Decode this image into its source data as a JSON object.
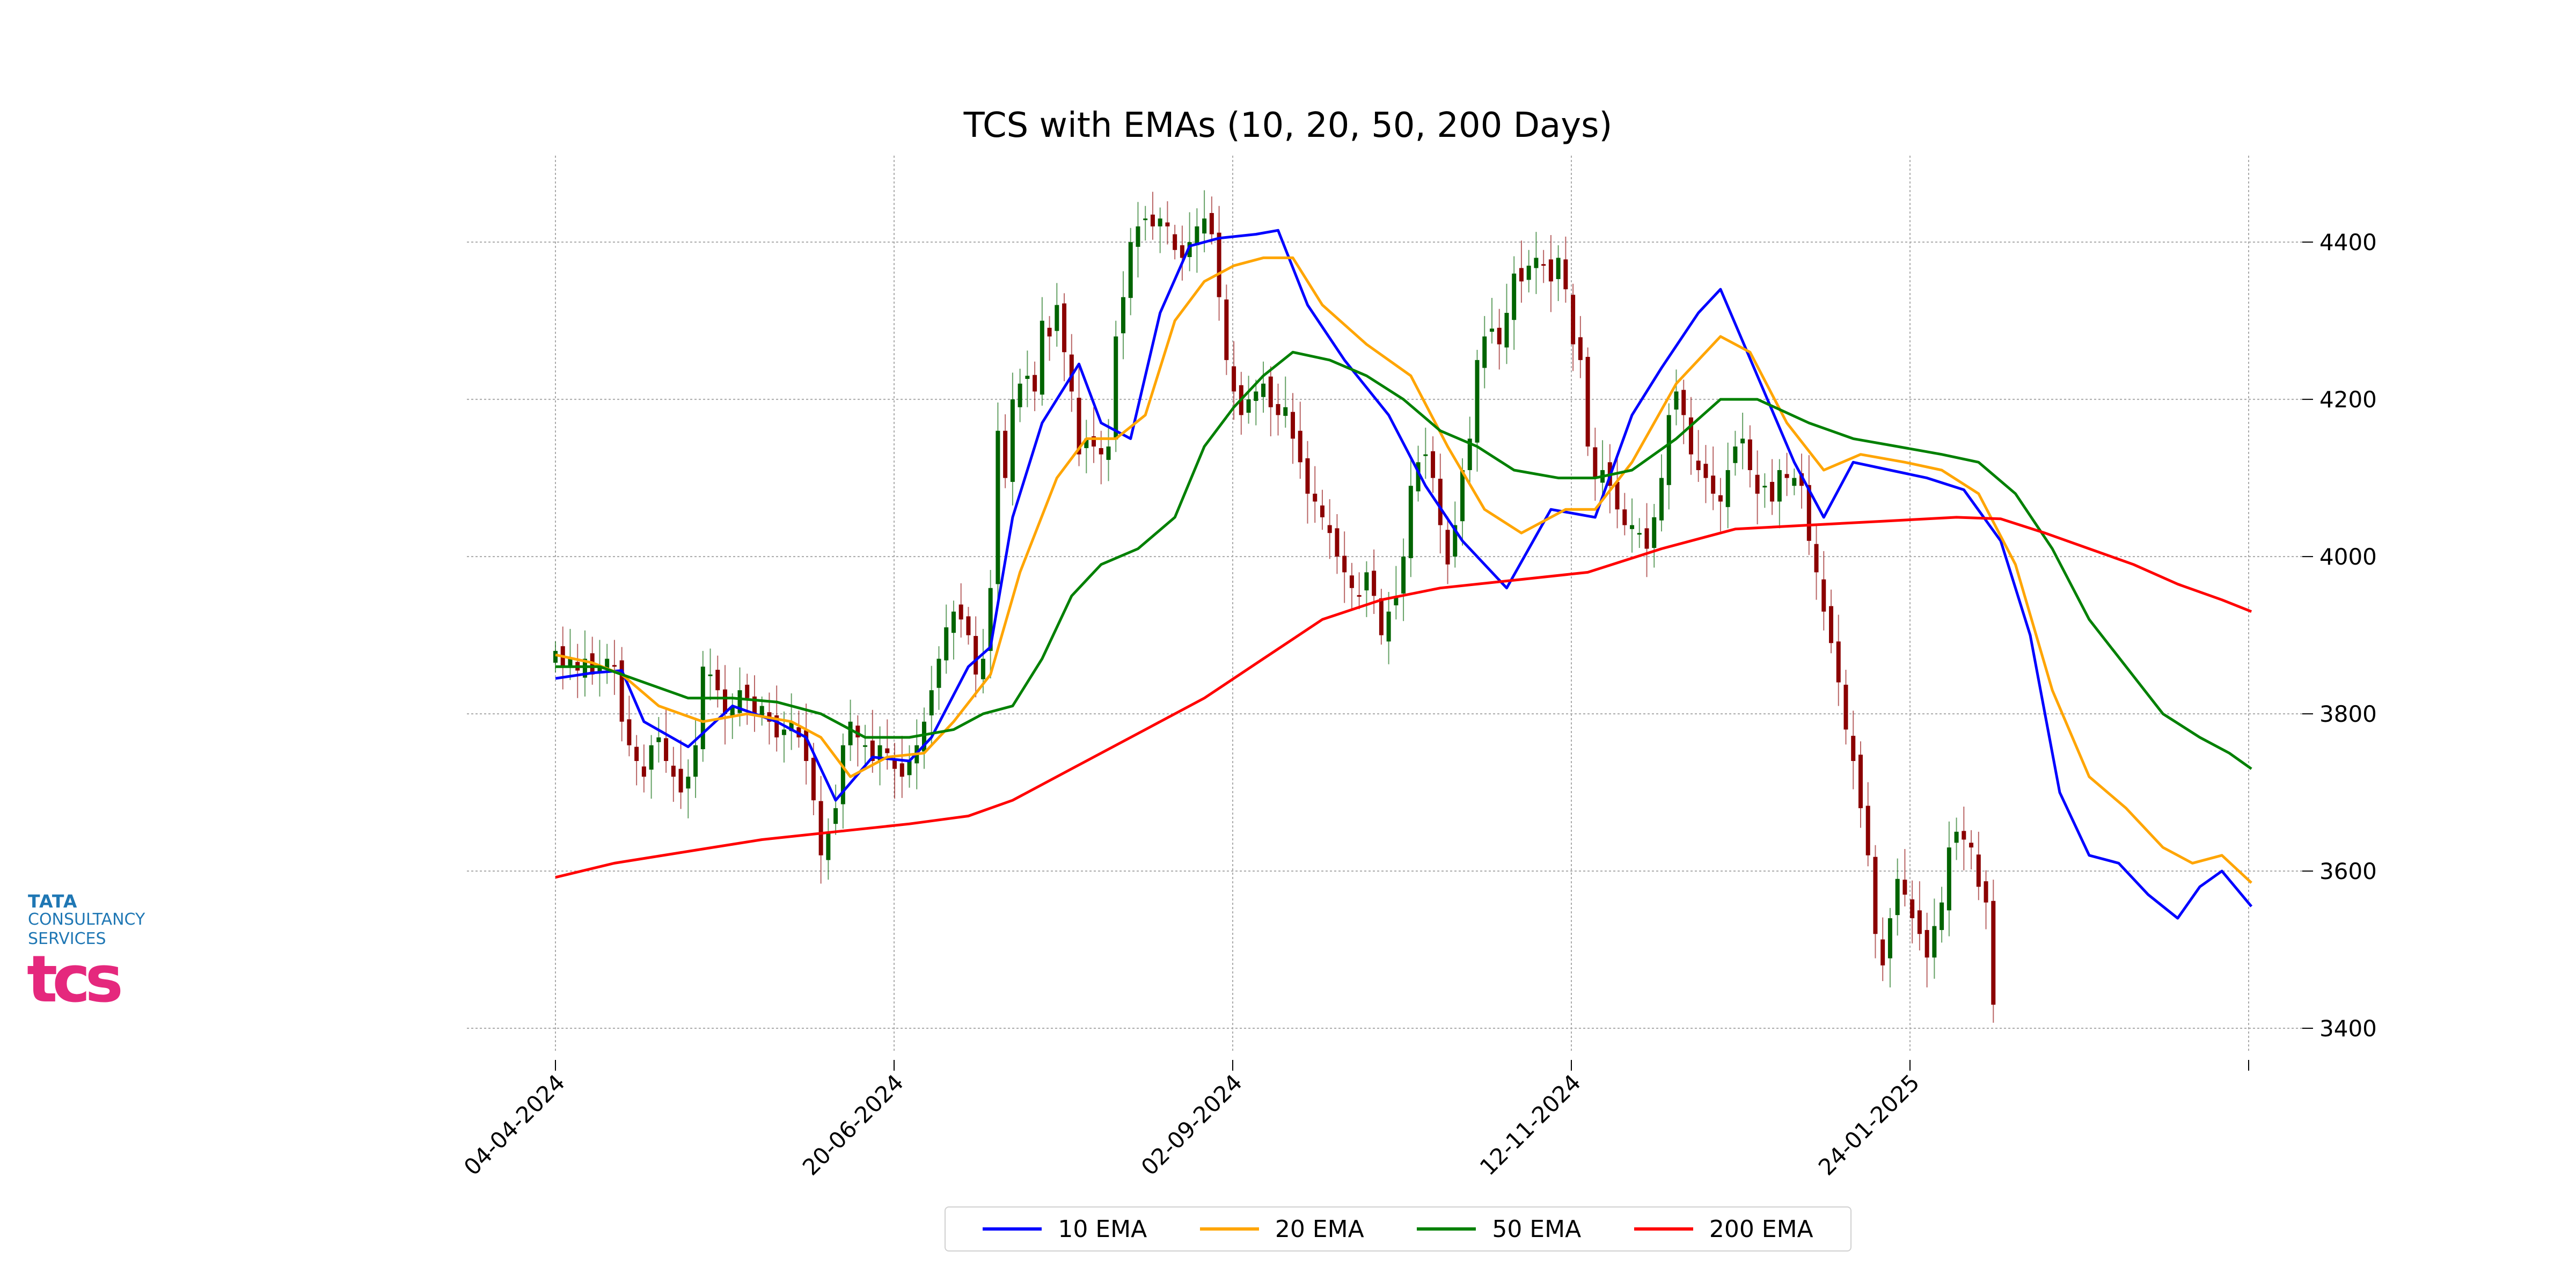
{
  "logo": {
    "line1": "TATA",
    "line2": "CONSULTANCY",
    "line3": "SERVICES",
    "mark": "tcs"
  },
  "chart_data": {
    "type": "candlestick",
    "title": "TCS with EMAs (10, 20, 50, 200 Days)",
    "xlabel": "",
    "ylabel": "",
    "ylim": [
      3370,
      4510
    ],
    "y_ticks": [
      3400,
      3600,
      3800,
      4000,
      4200,
      4400
    ],
    "x_tick_labels": [
      "04-04-2024",
      "20-06-2024",
      "02-09-2024",
      "12-11-2024",
      "24-01-2025",
      ""
    ],
    "grid": true,
    "y_axis_side": "right",
    "legend_position": "bottom-center",
    "colors": {
      "up": "#006400",
      "down": "#8b0000"
    },
    "candles_approx_close": [
      3880,
      3860,
      3870,
      3855,
      3870,
      3850,
      3860,
      3870,
      3860,
      3790,
      3760,
      3740,
      3720,
      3760,
      3770,
      3740,
      3720,
      3700,
      3720,
      3760,
      3860,
      3850,
      3830,
      3800,
      3810,
      3830,
      3820,
      3800,
      3810,
      3790,
      3770,
      3780,
      3790,
      3770,
      3740,
      3690,
      3620,
      3650,
      3680,
      3760,
      3790,
      3770,
      3760,
      3740,
      3760,
      3750,
      3730,
      3720,
      3740,
      3760,
      3790,
      3830,
      3870,
      3910,
      3930,
      3920,
      3900,
      3850,
      3870,
      3960,
      4160,
      4100,
      4200,
      4220,
      4230,
      4210,
      4300,
      4280,
      4320,
      4260,
      4210,
      4130,
      4150,
      4140,
      4130,
      4140,
      4280,
      4330,
      4400,
      4420,
      4430,
      4420,
      4430,
      4420,
      4390,
      4380,
      4400,
      4420,
      4430,
      4410,
      4330,
      4250,
      4210,
      4180,
      4200,
      4210,
      4220,
      4190,
      4180,
      4190,
      4150,
      4120,
      4080,
      4070,
      4050,
      4030,
      4000,
      3980,
      3960,
      3950,
      3980,
      3950,
      3900,
      3930,
      3950,
      4000,
      4090,
      4120,
      4130,
      4100,
      4040,
      3990,
      4040,
      4110,
      4150,
      4250,
      4280,
      4290,
      4270,
      4310,
      4360,
      4350,
      4370,
      4380,
      4370,
      4350,
      4380,
      4340,
      4270,
      4250,
      4140,
      4100,
      4110,
      4090,
      4060,
      4040,
      4040,
      4030,
      4010,
      4050,
      4100,
      4180,
      4210,
      4180,
      4130,
      4110,
      4100,
      4080,
      4070,
      4110,
      4140,
      4150,
      4110,
      4080,
      4090,
      4070,
      4110,
      4100,
      4100,
      4090,
      4020,
      3980,
      3930,
      3890,
      3840,
      3780,
      3740,
      3680,
      3620,
      3520,
      3480,
      3540,
      3590,
      3570,
      3540,
      3520,
      3490,
      3530,
      3560,
      3630,
      3650,
      3640,
      3630,
      3580,
      3560,
      3430
    ],
    "series": [
      {
        "name": "10 EMA",
        "color": "#0000ff",
        "points": [
          [
            0,
            3845
          ],
          [
            5,
            3852
          ],
          [
            9,
            3855
          ],
          [
            12,
            3790
          ],
          [
            18,
            3758
          ],
          [
            24,
            3810
          ],
          [
            30,
            3790
          ],
          [
            34,
            3770
          ],
          [
            38,
            3690
          ],
          [
            43,
            3745
          ],
          [
            48,
            3740
          ],
          [
            51,
            3770
          ],
          [
            56,
            3860
          ],
          [
            59,
            3885
          ],
          [
            62,
            4050
          ],
          [
            66,
            4170
          ],
          [
            71,
            4245
          ],
          [
            74,
            4170
          ],
          [
            78,
            4150
          ],
          [
            82,
            4310
          ],
          [
            86,
            4395
          ],
          [
            90,
            4405
          ],
          [
            95,
            4410
          ],
          [
            98,
            4415
          ],
          [
            102,
            4320
          ],
          [
            107,
            4250
          ],
          [
            113,
            4180
          ],
          [
            118,
            4090
          ],
          [
            123,
            4020
          ],
          [
            129,
            3960
          ],
          [
            135,
            4060
          ],
          [
            141,
            4050
          ],
          [
            146,
            4180
          ],
          [
            150,
            4240
          ],
          [
            155,
            4310
          ],
          [
            158,
            4340
          ],
          [
            163,
            4230
          ],
          [
            168,
            4120
          ],
          [
            172,
            4050
          ],
          [
            176,
            4120
          ],
          [
            181,
            4110
          ],
          [
            186,
            4100
          ],
          [
            191,
            4085
          ],
          [
            196,
            4020
          ],
          [
            200,
            3900
          ],
          [
            204,
            3700
          ],
          [
            208,
            3620
          ],
          [
            212,
            3610
          ],
          [
            216,
            3570
          ],
          [
            220,
            3540
          ],
          [
            223,
            3580
          ],
          [
            226,
            3600
          ],
          [
            230,
            3555
          ]
        ]
      },
      {
        "name": "20 EMA",
        "color": "#ffa500",
        "points": [
          [
            0,
            3875
          ],
          [
            5,
            3865
          ],
          [
            9,
            3850
          ],
          [
            14,
            3810
          ],
          [
            20,
            3790
          ],
          [
            26,
            3800
          ],
          [
            32,
            3790
          ],
          [
            36,
            3770
          ],
          [
            40,
            3720
          ],
          [
            45,
            3745
          ],
          [
            50,
            3750
          ],
          [
            54,
            3790
          ],
          [
            59,
            3850
          ],
          [
            63,
            3980
          ],
          [
            68,
            4100
          ],
          [
            72,
            4150
          ],
          [
            76,
            4150
          ],
          [
            80,
            4180
          ],
          [
            84,
            4300
          ],
          [
            88,
            4350
          ],
          [
            92,
            4370
          ],
          [
            96,
            4380
          ],
          [
            100,
            4380
          ],
          [
            104,
            4320
          ],
          [
            110,
            4270
          ],
          [
            116,
            4230
          ],
          [
            121,
            4140
          ],
          [
            126,
            4060
          ],
          [
            131,
            4030
          ],
          [
            137,
            4060
          ],
          [
            141,
            4060
          ],
          [
            146,
            4120
          ],
          [
            152,
            4220
          ],
          [
            158,
            4280
          ],
          [
            162,
            4260
          ],
          [
            167,
            4170
          ],
          [
            172,
            4110
          ],
          [
            177,
            4130
          ],
          [
            183,
            4120
          ],
          [
            188,
            4110
          ],
          [
            193,
            4080
          ],
          [
            198,
            3990
          ],
          [
            203,
            3830
          ],
          [
            208,
            3720
          ],
          [
            213,
            3680
          ],
          [
            218,
            3630
          ],
          [
            222,
            3610
          ],
          [
            226,
            3620
          ],
          [
            230,
            3585
          ]
        ]
      },
      {
        "name": "50 EMA",
        "color": "#008000",
        "points": [
          [
            0,
            3860
          ],
          [
            6,
            3860
          ],
          [
            12,
            3840
          ],
          [
            18,
            3820
          ],
          [
            24,
            3820
          ],
          [
            30,
            3815
          ],
          [
            36,
            3800
          ],
          [
            42,
            3770
          ],
          [
            48,
            3770
          ],
          [
            54,
            3780
          ],
          [
            58,
            3800
          ],
          [
            62,
            3810
          ],
          [
            66,
            3870
          ],
          [
            70,
            3950
          ],
          [
            74,
            3990
          ],
          [
            79,
            4010
          ],
          [
            84,
            4050
          ],
          [
            88,
            4140
          ],
          [
            92,
            4190
          ],
          [
            96,
            4230
          ],
          [
            100,
            4260
          ],
          [
            105,
            4250
          ],
          [
            110,
            4230
          ],
          [
            115,
            4200
          ],
          [
            120,
            4160
          ],
          [
            125,
            4140
          ],
          [
            130,
            4110
          ],
          [
            136,
            4100
          ],
          [
            141,
            4100
          ],
          [
            146,
            4110
          ],
          [
            152,
            4150
          ],
          [
            158,
            4200
          ],
          [
            163,
            4200
          ],
          [
            170,
            4170
          ],
          [
            176,
            4150
          ],
          [
            182,
            4140
          ],
          [
            188,
            4130
          ],
          [
            193,
            4120
          ],
          [
            198,
            4080
          ],
          [
            203,
            4010
          ],
          [
            208,
            3920
          ],
          [
            213,
            3860
          ],
          [
            218,
            3800
          ],
          [
            223,
            3770
          ],
          [
            227,
            3750
          ],
          [
            230,
            3730
          ]
        ]
      },
      {
        "name": "200 EMA",
        "color": "#ff0000",
        "points": [
          [
            0,
            3592
          ],
          [
            8,
            3610
          ],
          [
            18,
            3625
          ],
          [
            28,
            3640
          ],
          [
            38,
            3650
          ],
          [
            48,
            3660
          ],
          [
            56,
            3670
          ],
          [
            62,
            3690
          ],
          [
            70,
            3730
          ],
          [
            80,
            3780
          ],
          [
            88,
            3820
          ],
          [
            96,
            3870
          ],
          [
            104,
            3920
          ],
          [
            112,
            3945
          ],
          [
            120,
            3960
          ],
          [
            130,
            3970
          ],
          [
            140,
            3980
          ],
          [
            150,
            4010
          ],
          [
            160,
            4035
          ],
          [
            170,
            4040
          ],
          [
            180,
            4045
          ],
          [
            190,
            4050
          ],
          [
            196,
            4048
          ],
          [
            202,
            4030
          ],
          [
            208,
            4010
          ],
          [
            214,
            3990
          ],
          [
            220,
            3965
          ],
          [
            226,
            3945
          ],
          [
            230,
            3930
          ]
        ]
      }
    ]
  }
}
